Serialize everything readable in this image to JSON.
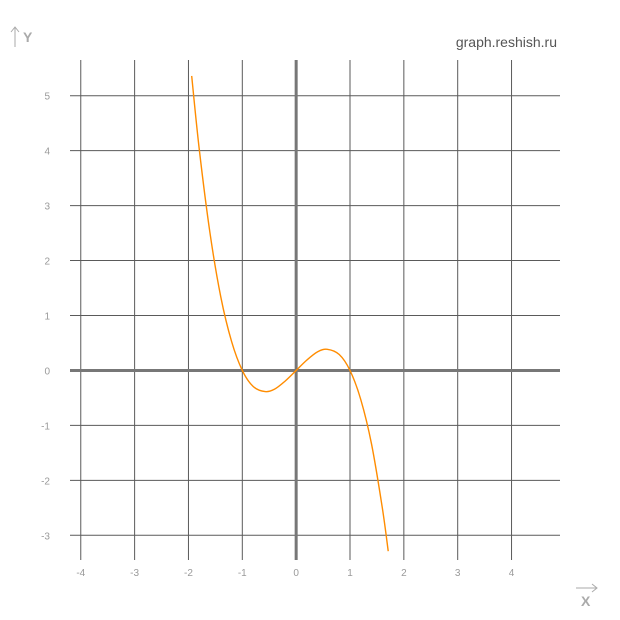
{
  "watermark": "graph.reshish.ru",
  "chart_data": {
    "type": "line",
    "title": "",
    "xlabel": "X",
    "ylabel": "Y",
    "xlim": [
      -4.2,
      4.9
    ],
    "ylim": [
      -3.45,
      5.65
    ],
    "x_ticks": [
      -4,
      -3,
      -2,
      -1,
      0,
      1,
      2,
      3,
      4
    ],
    "y_ticks": [
      -3,
      -2,
      -1,
      0,
      1,
      2,
      3,
      4,
      5
    ],
    "x_tick_labels": [
      "-4",
      "-3",
      "-2",
      "-1",
      "0",
      "1",
      "2",
      "3",
      "4"
    ],
    "y_tick_labels": [
      "-3",
      "-2",
      "-1",
      "0",
      "1",
      "2",
      "3",
      "4",
      "5"
    ],
    "grid": true,
    "series": [
      {
        "color": "#ff8c00",
        "x": [
          -1.94,
          -1.8,
          -1.6,
          -1.4,
          -1.2,
          -1.0,
          -0.8,
          -0.577,
          -0.4,
          -0.2,
          0.0,
          0.2,
          0.4,
          0.577,
          0.8,
          1.0,
          1.2,
          1.4,
          1.6,
          1.71
        ],
        "y": [
          5.36,
          4.03,
          2.5,
          1.34,
          0.53,
          0.0,
          -0.29,
          -0.385,
          -0.34,
          -0.19,
          0.0,
          0.19,
          0.34,
          0.385,
          0.29,
          0.0,
          -0.53,
          -1.34,
          -2.5,
          -3.29
        ]
      }
    ]
  }
}
